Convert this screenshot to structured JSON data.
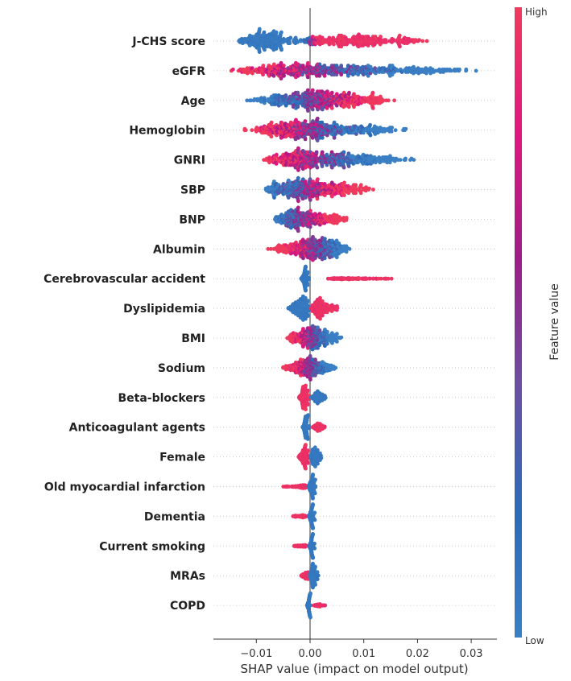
{
  "chart_data": {
    "type": "scatter",
    "subtype": "shap-beeswarm",
    "xlabel": "SHAP value (impact on model output)",
    "xlim": [
      -0.018,
      0.035
    ],
    "xticks": [
      -0.01,
      0.0,
      0.01,
      0.02,
      0.03
    ],
    "xtick_labels": [
      "−0.01",
      "0.00",
      "0.01",
      "0.02",
      "0.03"
    ],
    "colorbar": {
      "label": "Feature value",
      "high": "High",
      "low": "Low",
      "colors": [
        "#3b7fc4",
        "#2a6bb8",
        "#6b4fa0",
        "#9c1e86",
        "#e0177f",
        "#ef3a5d"
      ]
    },
    "features": [
      {
        "name": "J-CHS score",
        "groups": [
          {
            "c": "low",
            "min": -0.014,
            "max": -0.001,
            "peak": -0.009,
            "n": 230
          },
          {
            "c": "mix",
            "min": -0.002,
            "max": 0.003,
            "peak": 0.0,
            "n": 40,
            "dir": 1
          },
          {
            "c": "high",
            "min": 0.0005,
            "max": 0.023,
            "peak": 0.006,
            "n": 230
          }
        ]
      },
      {
        "name": "eGFR",
        "groups": [
          {
            "c": "mix",
            "min": -0.016,
            "max": 0.032,
            "peak": -0.003,
            "n": 480,
            "dir": -1
          }
        ]
      },
      {
        "name": "Age",
        "groups": [
          {
            "c": "mix",
            "min": -0.012,
            "max": 0.016,
            "peak": 0.0,
            "n": 450,
            "dir": 1
          }
        ]
      },
      {
        "name": "Hemoglobin",
        "groups": [
          {
            "c": "mix",
            "min": -0.013,
            "max": 0.019,
            "peak": -0.002,
            "n": 450,
            "dir": -1
          }
        ]
      },
      {
        "name": "GNRI",
        "groups": [
          {
            "c": "mix",
            "min": -0.009,
            "max": 0.02,
            "peak": -0.002,
            "n": 430,
            "dir": -1
          }
        ]
      },
      {
        "name": "SBP",
        "groups": [
          {
            "c": "mix",
            "min": -0.009,
            "max": 0.013,
            "peak": -0.003,
            "n": 420,
            "dir": 1
          }
        ]
      },
      {
        "name": "BNP",
        "groups": [
          {
            "c": "mix",
            "min": -0.007,
            "max": 0.008,
            "peak": -0.003,
            "n": 400,
            "dir": 1
          }
        ]
      },
      {
        "name": "Albumin",
        "groups": [
          {
            "c": "mix",
            "min": -0.008,
            "max": 0.008,
            "peak": 0.002,
            "n": 430,
            "dir": -1
          }
        ]
      },
      {
        "name": "Cerebrovascular accident",
        "groups": [
          {
            "c": "low",
            "min": -0.0017,
            "max": -0.0002,
            "peak": -0.001,
            "n": 330
          },
          {
            "c": "high",
            "min": 0.003,
            "max": 0.0158,
            "peak": 0.006,
            "n": 110
          }
        ]
      },
      {
        "name": "Dyslipidemia",
        "groups": [
          {
            "c": "low",
            "min": -0.0042,
            "max": -0.0001,
            "peak": -0.001,
            "n": 230
          },
          {
            "c": "high",
            "min": 0.0001,
            "max": 0.0055,
            "peak": 0.001,
            "n": 200
          }
        ]
      },
      {
        "name": "BMI",
        "groups": [
          {
            "c": "mix",
            "min": -0.0045,
            "max": 0.006,
            "peak": 0.0,
            "n": 380,
            "dir": -1
          }
        ]
      },
      {
        "name": "Sodium",
        "groups": [
          {
            "c": "mix",
            "min": -0.0052,
            "max": 0.005,
            "peak": 0.0,
            "n": 380,
            "dir": -1
          }
        ]
      },
      {
        "name": "Beta-blockers",
        "groups": [
          {
            "c": "high",
            "min": -0.0022,
            "max": -0.0001,
            "peak": -0.001,
            "n": 240
          },
          {
            "c": "low",
            "min": 0.0001,
            "max": 0.0032,
            "peak": 0.001,
            "n": 150
          }
        ]
      },
      {
        "name": "Anticoagulant agents",
        "groups": [
          {
            "c": "low",
            "min": -0.0014,
            "max": -0.0001,
            "peak": -0.0008,
            "n": 240
          },
          {
            "c": "high",
            "min": 0.0003,
            "max": 0.003,
            "peak": 0.001,
            "n": 110
          }
        ]
      },
      {
        "name": "Female",
        "groups": [
          {
            "c": "high",
            "min": -0.0022,
            "max": -0.0001,
            "peak": -0.001,
            "n": 180
          },
          {
            "c": "low",
            "min": 0.0,
            "max": 0.0022,
            "peak": 0.0005,
            "n": 180
          }
        ]
      },
      {
        "name": "Old myocardial infarction",
        "groups": [
          {
            "c": "high",
            "min": -0.0052,
            "max": -0.0002,
            "peak": -0.001,
            "n": 90
          },
          {
            "c": "low",
            "min": -0.0003,
            "max": 0.0011,
            "peak": 0.0002,
            "n": 280
          }
        ]
      },
      {
        "name": "Dementia",
        "groups": [
          {
            "c": "high",
            "min": -0.0035,
            "max": -0.0005,
            "peak": -0.0015,
            "n": 60
          },
          {
            "c": "low",
            "min": -0.0002,
            "max": 0.0009,
            "peak": 0.0002,
            "n": 300
          }
        ]
      },
      {
        "name": "Current smoking",
        "groups": [
          {
            "c": "high",
            "min": -0.0032,
            "max": -0.0003,
            "peak": -0.0015,
            "n": 60
          },
          {
            "c": "low",
            "min": -0.0002,
            "max": 0.0009,
            "peak": 0.0002,
            "n": 300
          }
        ]
      },
      {
        "name": "MRAs",
        "groups": [
          {
            "c": "high",
            "min": -0.0018,
            "max": -0.0001,
            "peak": -0.0005,
            "n": 90
          },
          {
            "c": "low",
            "min": -0.0001,
            "max": 0.0016,
            "peak": 0.0003,
            "n": 260
          }
        ]
      },
      {
        "name": "COPD",
        "groups": [
          {
            "c": "low",
            "min": -0.0006,
            "max": 0.0001,
            "peak": -0.0002,
            "n": 300
          },
          {
            "c": "high",
            "min": 0.0006,
            "max": 0.003,
            "peak": 0.0012,
            "n": 60
          }
        ]
      }
    ]
  }
}
